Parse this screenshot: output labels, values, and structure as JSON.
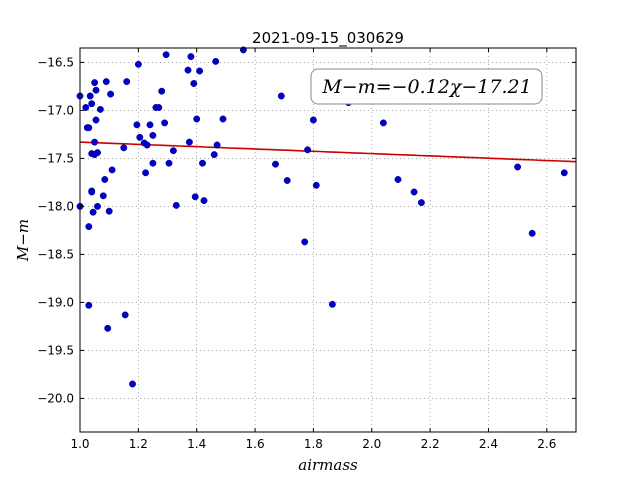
{
  "chart_data": {
    "type": "scatter",
    "title": "2021-09-15_030629",
    "xlabel": "airmass",
    "ylabel": "M−m",
    "annotation": "M−m=−0.12χ−17.21",
    "xlim": [
      1.0,
      2.7
    ],
    "ylim": [
      -20.35,
      -16.35
    ],
    "y_inverted": true,
    "grid": true,
    "x_ticks": [
      1.0,
      1.2,
      1.4,
      1.6,
      1.8,
      2.0,
      2.2,
      2.4,
      2.6
    ],
    "x_tick_labels": [
      "1.0",
      "1.2",
      "1.4",
      "1.6",
      "1.8",
      "2.0",
      "2.2",
      "2.4",
      "2.6"
    ],
    "y_ticks": [
      -16.5,
      -17.0,
      -17.5,
      -18.0,
      -18.5,
      -19.0,
      -19.5,
      -20.0
    ],
    "y_tick_labels": [
      "−16.5",
      "−17.0",
      "−17.5",
      "−18.0",
      "−18.5",
      "−19.0",
      "−19.5",
      "−20.0"
    ],
    "points_color": "#0000cc",
    "fit_color": "#cc0000",
    "fit": {
      "slope": -0.12,
      "intercept": -17.21,
      "x_range": [
        1.0,
        2.7
      ]
    },
    "points": [
      {
        "x": 1.0,
        "y": -16.85
      },
      {
        "x": 1.0,
        "y": -18.0
      },
      {
        "x": 1.02,
        "y": -16.97
      },
      {
        "x": 1.025,
        "y": -17.18
      },
      {
        "x": 1.03,
        "y": -17.18
      },
      {
        "x": 1.03,
        "y": -18.21
      },
      {
        "x": 1.03,
        "y": -19.03
      },
      {
        "x": 1.035,
        "y": -16.85
      },
      {
        "x": 1.04,
        "y": -16.93
      },
      {
        "x": 1.04,
        "y": -17.45
      },
      {
        "x": 1.04,
        "y": -17.84
      },
      {
        "x": 1.04,
        "y": -17.85
      },
      {
        "x": 1.045,
        "y": -18.06
      },
      {
        "x": 1.05,
        "y": -16.71
      },
      {
        "x": 1.05,
        "y": -17.33
      },
      {
        "x": 1.05,
        "y": -17.46
      },
      {
        "x": 1.055,
        "y": -17.1
      },
      {
        "x": 1.055,
        "y": -16.79
      },
      {
        "x": 1.06,
        "y": -17.44
      },
      {
        "x": 1.06,
        "y": -18.0
      },
      {
        "x": 1.07,
        "y": -16.99
      },
      {
        "x": 1.08,
        "y": -17.89
      },
      {
        "x": 1.085,
        "y": -17.72
      },
      {
        "x": 1.09,
        "y": -16.7
      },
      {
        "x": 1.095,
        "y": -19.27
      },
      {
        "x": 1.1,
        "y": -18.05
      },
      {
        "x": 1.105,
        "y": -16.83
      },
      {
        "x": 1.11,
        "y": -17.62
      },
      {
        "x": 1.15,
        "y": -17.39
      },
      {
        "x": 1.155,
        "y": -19.13
      },
      {
        "x": 1.16,
        "y": -16.7
      },
      {
        "x": 1.18,
        "y": -19.85
      },
      {
        "x": 1.195,
        "y": -17.15
      },
      {
        "x": 1.2,
        "y": -16.52
      },
      {
        "x": 1.205,
        "y": -17.28
      },
      {
        "x": 1.22,
        "y": -17.34
      },
      {
        "x": 1.225,
        "y": -17.65
      },
      {
        "x": 1.23,
        "y": -17.36
      },
      {
        "x": 1.24,
        "y": -17.15
      },
      {
        "x": 1.25,
        "y": -17.26
      },
      {
        "x": 1.25,
        "y": -17.55
      },
      {
        "x": 1.26,
        "y": -16.97
      },
      {
        "x": 1.27,
        "y": -16.97
      },
      {
        "x": 1.28,
        "y": -16.8
      },
      {
        "x": 1.29,
        "y": -17.13
      },
      {
        "x": 1.295,
        "y": -16.42
      },
      {
        "x": 1.305,
        "y": -17.55
      },
      {
        "x": 1.32,
        "y": -17.42
      },
      {
        "x": 1.33,
        "y": -17.99
      },
      {
        "x": 1.37,
        "y": -16.58
      },
      {
        "x": 1.375,
        "y": -17.33
      },
      {
        "x": 1.38,
        "y": -16.44
      },
      {
        "x": 1.39,
        "y": -16.72
      },
      {
        "x": 1.395,
        "y": -17.9
      },
      {
        "x": 1.4,
        "y": -17.09
      },
      {
        "x": 1.41,
        "y": -16.59
      },
      {
        "x": 1.42,
        "y": -17.55
      },
      {
        "x": 1.425,
        "y": -17.94
      },
      {
        "x": 1.46,
        "y": -17.46
      },
      {
        "x": 1.465,
        "y": -16.49
      },
      {
        "x": 1.47,
        "y": -17.36
      },
      {
        "x": 1.49,
        "y": -17.09
      },
      {
        "x": 1.56,
        "y": -16.37
      },
      {
        "x": 1.67,
        "y": -17.56
      },
      {
        "x": 1.69,
        "y": -16.85
      },
      {
        "x": 1.71,
        "y": -17.73
      },
      {
        "x": 1.77,
        "y": -18.37
      },
      {
        "x": 1.78,
        "y": -17.41
      },
      {
        "x": 1.8,
        "y": -17.1
      },
      {
        "x": 1.81,
        "y": -17.78
      },
      {
        "x": 1.865,
        "y": -19.02
      },
      {
        "x": 1.92,
        "y": -16.92
      },
      {
        "x": 2.04,
        "y": -17.13
      },
      {
        "x": 2.09,
        "y": -17.72
      },
      {
        "x": 2.145,
        "y": -17.85
      },
      {
        "x": 2.17,
        "y": -17.96
      },
      {
        "x": 2.5,
        "y": -17.59
      },
      {
        "x": 2.55,
        "y": -18.28
      },
      {
        "x": 2.66,
        "y": -17.65
      }
    ]
  }
}
